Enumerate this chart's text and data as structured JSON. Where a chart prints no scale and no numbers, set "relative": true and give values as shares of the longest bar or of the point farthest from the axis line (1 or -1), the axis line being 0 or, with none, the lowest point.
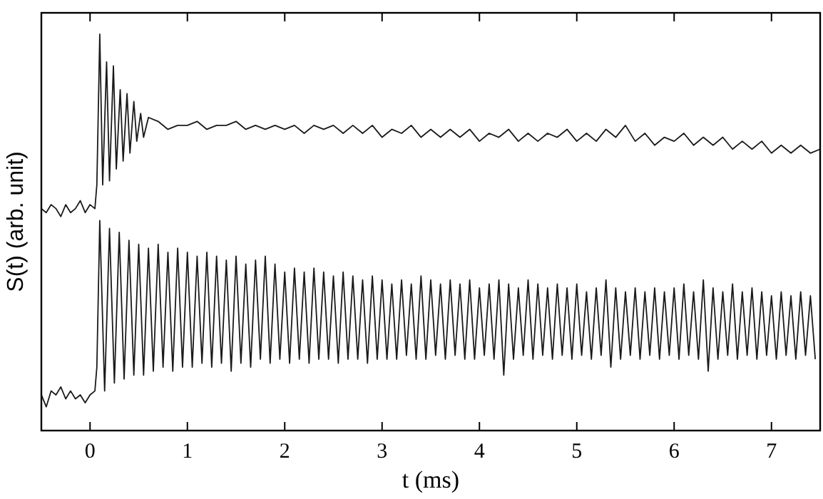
{
  "chart_data": {
    "type": "line",
    "relative": true,
    "xlabel": "t (ms)",
    "ylabel": "S(t) (arb. unit)",
    "xlim": [
      -0.5,
      7.5
    ],
    "xticks": [
      0,
      1,
      2,
      3,
      4,
      5,
      6,
      7
    ],
    "tick_labels": "x",
    "grid": false,
    "marker": "none",
    "line_style": "solid",
    "series": [
      {
        "color": "#1a1a1a",
        "x": [
          -0.5,
          -0.45,
          -0.4,
          -0.35,
          -0.3,
          -0.25,
          -0.2,
          -0.15,
          -0.1,
          -0.05,
          0,
          0.05,
          0.07,
          0.1,
          0.13,
          0.17,
          0.2,
          0.24,
          0.27,
          0.31,
          0.34,
          0.38,
          0.41,
          0.45,
          0.48,
          0.52,
          0.55,
          0.6,
          0.7,
          0.8,
          0.9,
          1.0,
          1.1,
          1.2,
          1.3,
          1.4,
          1.5,
          1.6,
          1.7,
          1.8,
          1.9,
          2.0,
          2.1,
          2.2,
          2.3,
          2.4,
          2.5,
          2.6,
          2.7,
          2.8,
          2.9,
          3.0,
          3.1,
          3.2,
          3.3,
          3.4,
          3.5,
          3.6,
          3.7,
          3.8,
          3.9,
          4.0,
          4.1,
          4.2,
          4.3,
          4.4,
          4.5,
          4.6,
          4.7,
          4.8,
          4.9,
          5.0,
          5.1,
          5.2,
          5.3,
          5.4,
          5.5,
          5.6,
          5.7,
          5.8,
          5.9,
          6.0,
          6.1,
          6.2,
          6.3,
          6.4,
          6.5,
          6.6,
          6.7,
          6.8,
          6.9,
          7.0,
          7.1,
          7.2,
          7.3,
          7.4,
          7.5
        ],
        "values": [
          0.56,
          0.55,
          0.57,
          0.56,
          0.54,
          0.57,
          0.55,
          0.56,
          0.58,
          0.55,
          0.57,
          0.56,
          0.62,
          1,
          0.62,
          0.93,
          0.63,
          0.92,
          0.66,
          0.86,
          0.68,
          0.85,
          0.7,
          0.83,
          0.73,
          0.8,
          0.74,
          0.79,
          0.78,
          0.76,
          0.77,
          0.77,
          0.78,
          0.76,
          0.77,
          0.77,
          0.78,
          0.76,
          0.77,
          0.76,
          0.77,
          0.76,
          0.77,
          0.75,
          0.77,
          0.76,
          0.77,
          0.75,
          0.77,
          0.75,
          0.77,
          0.74,
          0.76,
          0.75,
          0.77,
          0.74,
          0.76,
          0.74,
          0.76,
          0.74,
          0.76,
          0.73,
          0.75,
          0.74,
          0.76,
          0.73,
          0.75,
          0.73,
          0.75,
          0.74,
          0.76,
          0.73,
          0.75,
          0.73,
          0.76,
          0.74,
          0.77,
          0.73,
          0.75,
          0.72,
          0.74,
          0.73,
          0.75,
          0.72,
          0.74,
          0.72,
          0.74,
          0.71,
          0.73,
          0.71,
          0.73,
          0.7,
          0.72,
          0.7,
          0.72,
          0.7,
          0.71
        ]
      },
      {
        "color": "#1a1a1a",
        "x": [
          -0.5,
          -0.45,
          -0.4,
          -0.35,
          -0.3,
          -0.25,
          -0.2,
          -0.15,
          -0.1,
          -0.05,
          0,
          0.05,
          0.07,
          0.1,
          0.15,
          0.2,
          0.25,
          0.3,
          0.35,
          0.4,
          0.45,
          0.5,
          0.55,
          0.6,
          0.65,
          0.7,
          0.75,
          0.8,
          0.85,
          0.9,
          0.95,
          1.0,
          1.05,
          1.1,
          1.15,
          1.2,
          1.25,
          1.3,
          1.35,
          1.4,
          1.45,
          1.5,
          1.55,
          1.6,
          1.65,
          1.7,
          1.75,
          1.8,
          1.85,
          1.9,
          1.95,
          2.0,
          2.05,
          2.1,
          2.15,
          2.2,
          2.25,
          2.3,
          2.35,
          2.4,
          2.45,
          2.5,
          2.55,
          2.6,
          2.65,
          2.7,
          2.75,
          2.8,
          2.85,
          2.9,
          2.95,
          3.0,
          3.05,
          3.1,
          3.15,
          3.2,
          3.25,
          3.3,
          3.35,
          3.4,
          3.45,
          3.5,
          3.55,
          3.6,
          3.65,
          3.7,
          3.75,
          3.8,
          3.85,
          3.9,
          3.95,
          4.0,
          4.05,
          4.1,
          4.15,
          4.2,
          4.25,
          4.3,
          4.35,
          4.4,
          4.45,
          4.5,
          4.55,
          4.6,
          4.65,
          4.7,
          4.75,
          4.8,
          4.85,
          4.9,
          4.95,
          5.0,
          5.05,
          5.1,
          5.15,
          5.2,
          5.25,
          5.3,
          5.35,
          5.4,
          5.45,
          5.5,
          5.55,
          5.6,
          5.65,
          5.7,
          5.75,
          5.8,
          5.85,
          5.9,
          5.95,
          6.0,
          6.05,
          6.1,
          6.15,
          6.2,
          6.25,
          6.3,
          6.35,
          6.4,
          6.45,
          6.5,
          6.55,
          6.6,
          6.65,
          6.7,
          6.75,
          6.8,
          6.85,
          6.9,
          6.95,
          7.0,
          7.05,
          7.1,
          7.15,
          7.2,
          7.25,
          7.3,
          7.35,
          7.4,
          7.45
        ],
        "values": [
          0.09,
          0.06,
          0.1,
          0.09,
          0.11,
          0.08,
          0.1,
          0.08,
          0.09,
          0.07,
          0.09,
          0.1,
          0.16,
          0.53,
          0.1,
          0.51,
          0.12,
          0.5,
          0.13,
          0.48,
          0.14,
          0.47,
          0.14,
          0.46,
          0.15,
          0.47,
          0.16,
          0.45,
          0.15,
          0.46,
          0.16,
          0.45,
          0.16,
          0.44,
          0.17,
          0.45,
          0.16,
          0.44,
          0.17,
          0.43,
          0.15,
          0.44,
          0.17,
          0.42,
          0.16,
          0.43,
          0.18,
          0.44,
          0.17,
          0.42,
          0.18,
          0.4,
          0.17,
          0.41,
          0.18,
          0.4,
          0.17,
          0.41,
          0.18,
          0.4,
          0.18,
          0.39,
          0.17,
          0.4,
          0.18,
          0.39,
          0.18,
          0.38,
          0.17,
          0.39,
          0.18,
          0.38,
          0.18,
          0.37,
          0.18,
          0.38,
          0.19,
          0.37,
          0.18,
          0.39,
          0.18,
          0.38,
          0.19,
          0.37,
          0.18,
          0.38,
          0.19,
          0.37,
          0.18,
          0.38,
          0.18,
          0.36,
          0.19,
          0.37,
          0.18,
          0.38,
          0.14,
          0.37,
          0.18,
          0.36,
          0.19,
          0.38,
          0.18,
          0.37,
          0.19,
          0.36,
          0.18,
          0.37,
          0.19,
          0.36,
          0.18,
          0.37,
          0.19,
          0.35,
          0.18,
          0.36,
          0.19,
          0.38,
          0.16,
          0.36,
          0.18,
          0.35,
          0.19,
          0.36,
          0.18,
          0.35,
          0.19,
          0.36,
          0.18,
          0.35,
          0.19,
          0.36,
          0.18,
          0.37,
          0.19,
          0.35,
          0.18,
          0.38,
          0.15,
          0.36,
          0.18,
          0.35,
          0.19,
          0.37,
          0.18,
          0.35,
          0.19,
          0.36,
          0.18,
          0.35,
          0.19,
          0.34,
          0.18,
          0.35,
          0.19,
          0.34,
          0.18,
          0.35,
          0.19,
          0.34,
          0.18
        ]
      }
    ]
  }
}
